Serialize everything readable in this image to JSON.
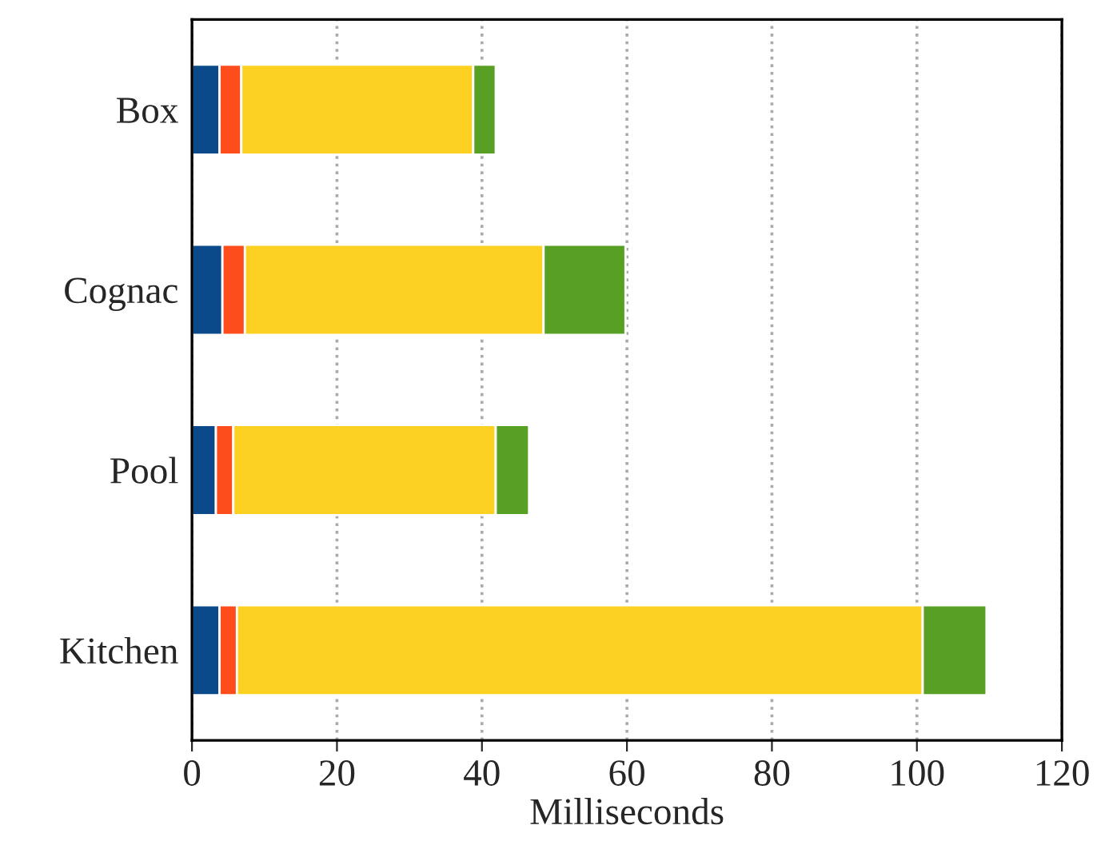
{
  "chart_data": {
    "type": "bar",
    "orientation": "horizontal",
    "stacked": true,
    "xlabel": "Milliseconds",
    "categories": [
      "Box",
      "Cognac",
      "Pool",
      "Kitchen"
    ],
    "series": [
      {
        "color": "#0b4a8a",
        "values": [
          3.8,
          4.2,
          3.3,
          3.8
        ]
      },
      {
        "color": "#fd4d1c",
        "values": [
          3.0,
          3.1,
          2.4,
          2.4
        ]
      },
      {
        "color": "#fdd122",
        "values": [
          32.0,
          41.2,
          36.2,
          94.6
        ]
      },
      {
        "color": "#58a023",
        "values": [
          3.1,
          11.3,
          4.6,
          8.8
        ]
      }
    ],
    "xlim": [
      0,
      120
    ],
    "xticks": [
      0,
      20,
      40,
      60,
      80,
      100,
      120
    ],
    "grid": "x",
    "line_style": "dotted"
  }
}
